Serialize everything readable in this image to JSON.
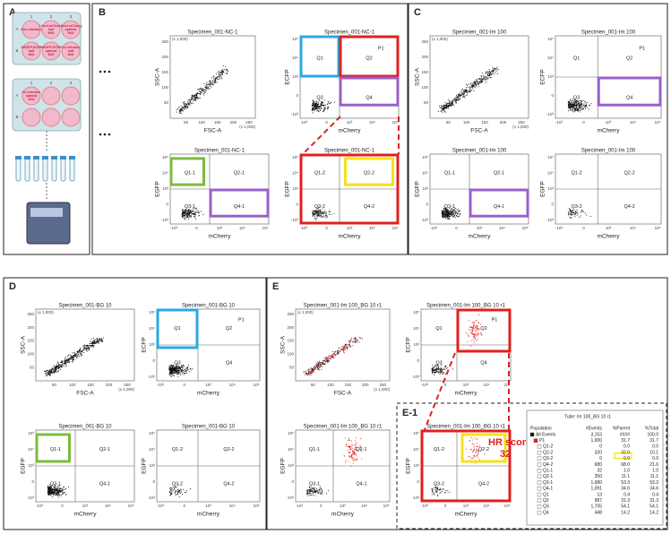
{
  "panel_labels": [
    "A",
    "B",
    "C",
    "D",
    "E",
    "E-1"
  ],
  "panel_a": {
    "columns": [
      "1",
      "2",
      "3"
    ],
    "rows": [
      "A",
      "B"
    ],
    "wells": [
      "Non-infection",
      "I-SceI-mCherry half MOI",
      "I-SceI-mCherry optimal MOI",
      "DRGFP-ECFP half MOI",
      "DRGFP-ECFP optimal MOI",
      "Co-infection half MOI"
    ],
    "wells2": [
      "Co-infection optimal MOI"
    ]
  },
  "linear_ticks": [
    "50",
    "100",
    "150",
    "200",
    "250"
  ],
  "scale_note": "(x 1,000)",
  "log_ticks": [
    "-10³",
    "0",
    "10³",
    "10⁴",
    "10⁵"
  ],
  "plots": [
    {
      "title": "Specimen_001-NC-1",
      "x_label": "FSC-A",
      "y_label": "SSC-A"
    },
    {
      "title": "Specimen_001-NC-1",
      "x_label": "mCherry",
      "y_label": "ECFP",
      "quadrants": [
        "Q1",
        "Q2",
        "Q3",
        "Q4"
      ],
      "gate": "P1"
    },
    {
      "title": "Specimen_001-NC-1",
      "x_label": "mCherry",
      "y_label": "EGFP",
      "quadrants": [
        "Q1-1",
        "Q2-1",
        "Q3-1",
        "Q4-1"
      ]
    },
    {
      "title": "Specimen_001-NC-1",
      "x_label": "mCherry",
      "y_label": "EGFP",
      "quadrants": [
        "Q1-2",
        "Q2-2",
        "Q3-2",
        "Q4-2"
      ]
    },
    {
      "title": "Specimen_001-Im 100",
      "x_label": "FSC-A",
      "y_label": "SSC-A"
    },
    {
      "title": "Specimen_001-Im 100",
      "x_label": "mCherry",
      "y_label": "ECFP",
      "quadrants": [
        "Q1",
        "Q2",
        "Q3",
        "Q4"
      ],
      "gate": "P1"
    },
    {
      "title": "Specimen_001-Im 100",
      "x_label": "mCherry",
      "y_label": "EGFP",
      "quadrants": [
        "Q1-1",
        "Q2-1",
        "Q3-1",
        "Q4-1"
      ]
    },
    {
      "title": "Specimen_001-Im 100",
      "x_label": "mCherry",
      "y_label": "EGFP",
      "quadrants": [
        "Q1-2",
        "Q2-2",
        "Q3-2",
        "Q4-2"
      ]
    },
    {
      "title": "Specimen_001-BG 10",
      "x_label": "FSC-A",
      "y_label": "SSC-A"
    },
    {
      "title": "Specimen_001-BG 10",
      "x_label": "mCherry",
      "y_label": "ECFP",
      "quadrants": [
        "Q1",
        "Q2",
        "Q3",
        "Q4"
      ],
      "gate": "P1"
    },
    {
      "title": "Specimen_001-BG 10",
      "x_label": "mCherry",
      "y_label": "EGFP",
      "quadrants": [
        "Q1-1",
        "Q2-1",
        "Q3-1",
        "Q4-1"
      ]
    },
    {
      "title": "Specimen_001-BG 10",
      "x_label": "mCherry",
      "y_label": "EGFP",
      "quadrants": [
        "Q1-2",
        "Q2-2",
        "Q3-2",
        "Q4-2"
      ]
    },
    {
      "title": "Specimen_001-Im 100_BG 10 r1",
      "x_label": "FSC-A",
      "y_label": "SSC-A"
    },
    {
      "title": "Specimen_001-Im 100_BG 10 r1",
      "x_label": "mCherry",
      "y_label": "ECFP",
      "quadrants": [
        "Q1",
        "Q2",
        "Q3",
        "Q4"
      ],
      "gate": "P1"
    },
    {
      "title": "Specimen_001-Im 100_BG 10 r1",
      "x_label": "mCherry",
      "y_label": "EGFP",
      "quadrants": [
        "Q1-1",
        "Q2-1",
        "Q3-1",
        "Q4-1"
      ]
    },
    {
      "title": "Specimen_001-Im 100_BG 10 r1",
      "x_label": "mCherry",
      "y_label": "EGFP",
      "quadrants": [
        "Q1-2",
        "Q2-2",
        "Q3-2",
        "Q4-2"
      ]
    }
  ],
  "hr_score": {
    "label": "HR score:",
    "value": 32
  },
  "table": {
    "tube": "Tube:  Im 100_BG 10 r1",
    "headers": [
      "Population",
      "#Events",
      "%Parent",
      "%Total"
    ],
    "rows": [
      [
        "All Events",
        "3,153",
        "####",
        "100.0"
      ],
      [
        "P1",
        "1,000",
        "31.7",
        "31.7"
      ],
      [
        "Q1-2",
        "0",
        "0.0",
        "0.0"
      ],
      [
        "Q2-2",
        "320",
        "32.0",
        "10.1"
      ],
      [
        "Q3-2",
        "0",
        "0.0",
        "0.0"
      ],
      [
        "Q4-2",
        "680",
        "68.0",
        "21.6"
      ],
      [
        "Q1-1",
        "32",
        "1.0",
        "1.0"
      ],
      [
        "Q2-1",
        "350",
        "11.1",
        "11.1"
      ],
      [
        "Q3-1",
        "1,680",
        "53.3",
        "53.3"
      ],
      [
        "Q4-1",
        "1,091",
        "34.6",
        "34.6"
      ],
      [
        "Q1",
        "13",
        "0.4",
        "0.4"
      ],
      [
        "Q2",
        "987",
        "31.3",
        "31.3"
      ],
      [
        "Q3",
        "1,705",
        "54.1",
        "54.1"
      ],
      [
        "Q4",
        "448",
        "14.2",
        "14.2"
      ]
    ]
  }
}
